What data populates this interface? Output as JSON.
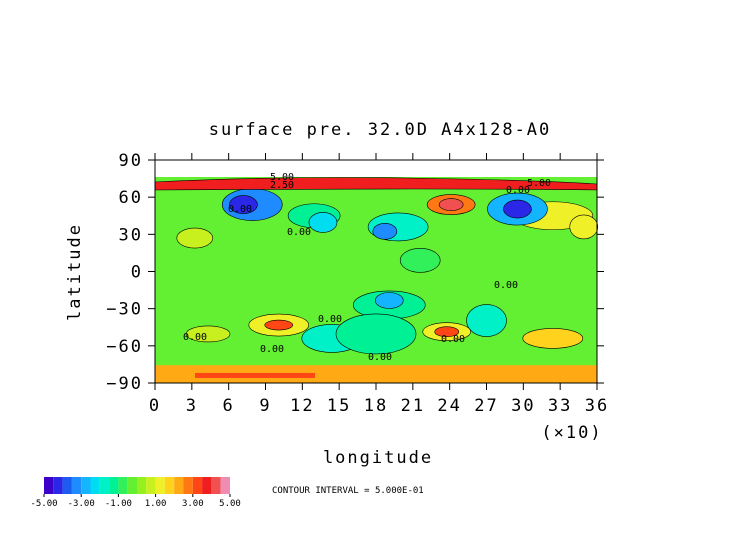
{
  "chart_data": {
    "type": "contour",
    "title": "surface pre. 32.0D A4x128-A0",
    "x_label": "longitude",
    "x_scale_note": "(×10)",
    "y_label": "latitude",
    "xlim": [
      0,
      36
    ],
    "xticks": [
      0,
      3,
      6,
      9,
      12,
      15,
      18,
      21,
      24,
      27,
      30,
      33,
      36
    ],
    "ylim": [
      -90,
      90
    ],
    "yticks": [
      {
        "value": -90,
        "label": "−90"
      },
      {
        "value": -60,
        "label": "−60"
      },
      {
        "value": -30,
        "label": "−30"
      },
      0,
      30,
      60,
      90
    ],
    "contour_labels": [
      "5.00",
      "2.50",
      "0.00",
      "0.00",
      "5.00",
      "0.00",
      "0.00",
      "0.00",
      "0.00",
      "0.00",
      "0.00",
      "0.00"
    ],
    "contour_interval": "CONTOUR INTERVAL = 5.000E-01",
    "colorbar": {
      "lim": [
        -5,
        5
      ],
      "ticks": [
        {
          "value": -5,
          "label": "-5.00"
        },
        {
          "value": -3,
          "label": "-3.00"
        },
        {
          "value": -1,
          "label": "-1.00"
        },
        {
          "value": 1,
          "label": "1.00"
        },
        {
          "value": 3,
          "label": "3.00"
        },
        {
          "value": 5,
          "label": "5.00"
        }
      ],
      "colors": [
        "#3c00c8",
        "#2a28e6",
        "#1e5af0",
        "#1e8cff",
        "#14b4ff",
        "#00dcf0",
        "#00f0c8",
        "#00f096",
        "#32f05a",
        "#64f032",
        "#96f01e",
        "#c8f01e",
        "#f0f028",
        "#ffd21e",
        "#ffaa14",
        "#ff7814",
        "#ff4614",
        "#f01e1e",
        "#f05050",
        "#f08cb4"
      ]
    }
  }
}
